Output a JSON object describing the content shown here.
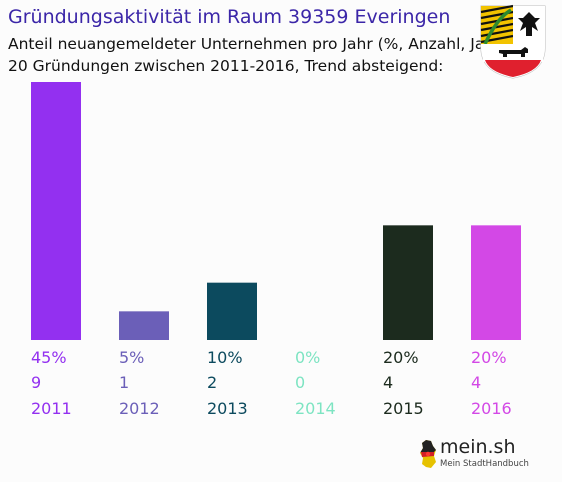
{
  "header": {
    "title": "Gründungsaktivität im Raum 39359 Everingen",
    "subtitle_line1": "Anteil neuangemeldeter Unternehmen pro Jahr (%, Anzahl, Jahr)",
    "subtitle_line2": "20 Gründungen zwischen 2011-2016, Trend absteigend:"
  },
  "brand": {
    "name": "mein.sh",
    "tagline": "Mein StadtHandbuch"
  },
  "chart_data": {
    "type": "bar",
    "categories": [
      "2011",
      "2012",
      "2013",
      "2014",
      "2015",
      "2016"
    ],
    "percent_labels": [
      "45%",
      "5%",
      "10%",
      "0%",
      "20%",
      "20%"
    ],
    "values": [
      45,
      5,
      10,
      0,
      20,
      20
    ],
    "counts": [
      9,
      1,
      2,
      0,
      4,
      4
    ],
    "colors": [
      "#9330f0",
      "#6b5fb8",
      "#0c4a5e",
      "#7de4c2",
      "#1c2b1e",
      "#d348e6"
    ],
    "ylim": [
      0,
      45
    ],
    "grid": false,
    "legend": "none"
  }
}
